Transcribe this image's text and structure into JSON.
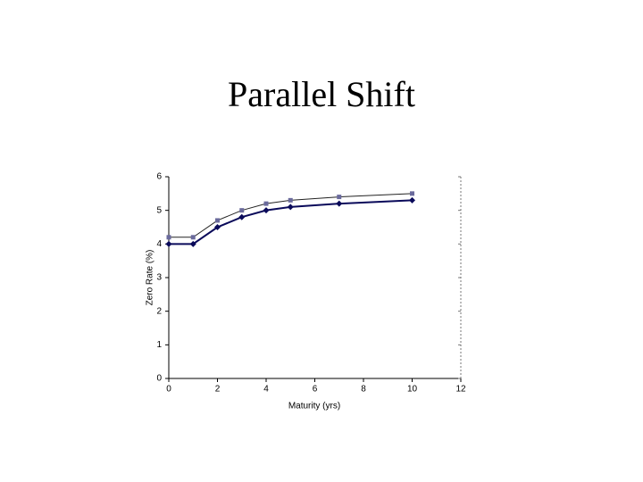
{
  "chart_data": {
    "type": "line",
    "title": "Parallel Shift",
    "x_label": "Maturity (yrs)",
    "y_label": "Zero Rate (%)",
    "x": [
      0,
      1,
      2,
      3,
      4,
      5,
      7,
      10
    ],
    "series": [
      {
        "color": "#6a6a9c",
        "values": [
          4.2,
          4.2,
          4.7,
          5.0,
          5.2,
          5.3,
          5.4,
          5.5
        ]
      },
      {
        "color": "#0a0a5a",
        "values": [
          4,
          4,
          4.5,
          4.8,
          5,
          5.1,
          5.2,
          5.3
        ]
      }
    ],
    "xlim": [
      0,
      12
    ],
    "xticks": [
      0,
      2,
      4,
      6,
      8,
      10,
      12
    ],
    "ylim": [
      0,
      6
    ],
    "yticks": [
      0,
      1,
      2,
      3,
      4,
      5,
      6
    ]
  }
}
